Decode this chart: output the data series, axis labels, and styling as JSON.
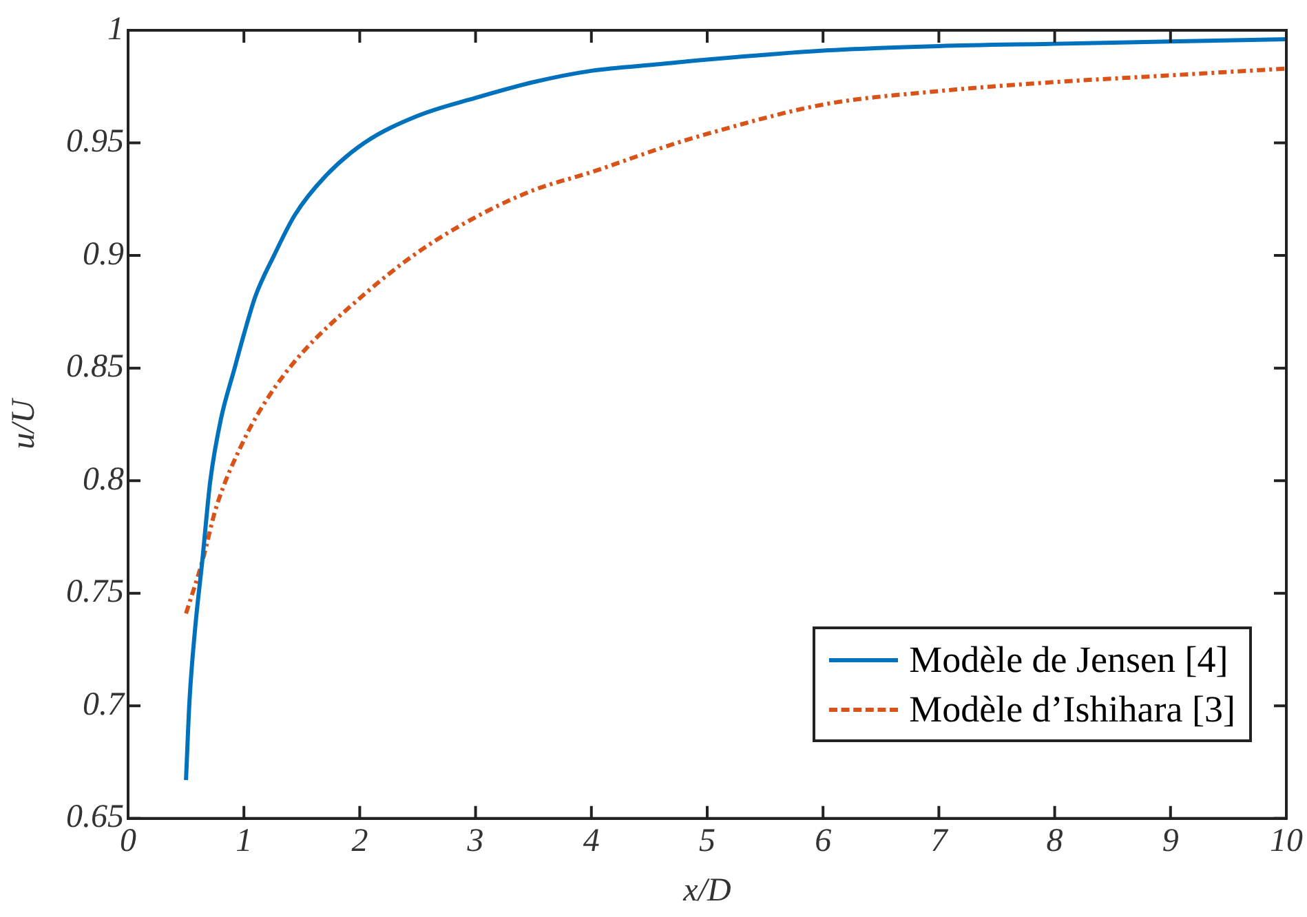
{
  "chart_data": {
    "type": "line",
    "xlabel": "x/D",
    "ylabel": "u/U",
    "xlim": [
      0,
      10
    ],
    "xticks": [
      0,
      1,
      2,
      3,
      4,
      5,
      6,
      7,
      8,
      9,
      10
    ],
    "ylim": [
      0.65,
      1
    ],
    "yticks": [
      0.65,
      0.7,
      0.75,
      0.8,
      0.85,
      0.9,
      0.95,
      1
    ],
    "grid": false,
    "legend": "bottom right",
    "marker": "none",
    "series": [
      {
        "name": "Modèle de Jensen [4]",
        "color": "#0072bd",
        "line_style": "solid",
        "x": [
          0.5,
          0.53,
          0.58,
          0.64,
          0.71,
          0.8,
          0.92,
          1,
          1.1,
          1.26,
          1.44,
          1.7,
          2.04,
          2.5,
          3,
          3.5,
          4,
          4.6,
          5,
          6,
          7,
          8,
          9,
          10
        ],
        "values": [
          0.667,
          0.702,
          0.735,
          0.764,
          0.8,
          0.827,
          0.85,
          0.865,
          0.882,
          0.9,
          0.918,
          0.935,
          0.95,
          0.962,
          0.97,
          0.977,
          0.982,
          0.985,
          0.987,
          0.991,
          0.993,
          0.994,
          0.995,
          0.996
        ]
      },
      {
        "name": "Modèle d’Ishihara [3]",
        "color": "#d95319",
        "line_style": "dashed",
        "x": [
          0.5,
          0.64,
          0.76,
          1,
          1.21,
          1.49,
          2,
          2.49,
          3,
          3.5,
          4,
          4.62,
          5,
          6,
          7,
          8,
          9,
          10
        ],
        "values": [
          0.741,
          0.764,
          0.788,
          0.818,
          0.837,
          0.856,
          0.881,
          0.901,
          0.917,
          0.929,
          0.937,
          0.948,
          0.954,
          0.967,
          0.973,
          0.977,
          0.98,
          0.983
        ]
      }
    ]
  }
}
